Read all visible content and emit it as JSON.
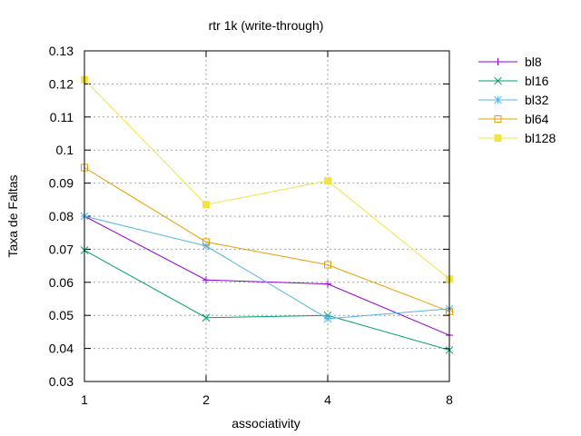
{
  "chart_data": {
    "type": "line",
    "title": "rtr 1k (write-through)",
    "xlabel": "associativity",
    "ylabel": "Taxa de Faltas",
    "x": [
      1,
      2,
      4,
      8
    ],
    "x_tick_labels": [
      "1",
      "2",
      "4",
      "8"
    ],
    "ylim": [
      0.03,
      0.13
    ],
    "y_ticks": [
      0.03,
      0.04,
      0.05,
      0.06,
      0.07,
      0.08,
      0.09,
      0.1,
      0.11,
      0.12,
      0.13
    ],
    "y_tick_labels": [
      "0.03",
      "0.04",
      "0.05",
      "0.06",
      "0.07",
      "0.08",
      "0.09",
      "0.1",
      "0.11",
      "0.12",
      "0.13"
    ],
    "grid": true,
    "legend_position": "outside-right-top",
    "series": [
      {
        "name": "bl8",
        "color": "#9400d3",
        "marker": "plus",
        "values": [
          0.08,
          0.0607,
          0.0595,
          0.044
        ]
      },
      {
        "name": "bl16",
        "color": "#009e73",
        "marker": "cross",
        "values": [
          0.0697,
          0.0493,
          0.05,
          0.0395
        ]
      },
      {
        "name": "bl32",
        "color": "#56b4e9",
        "marker": "star",
        "values": [
          0.08,
          0.071,
          0.049,
          0.052
        ]
      },
      {
        "name": "bl64",
        "color": "#e69f00",
        "marker": "square-open",
        "values": [
          0.0947,
          0.0722,
          0.0653,
          0.0512
        ]
      },
      {
        "name": "bl128",
        "color": "#f0e442",
        "marker": "square-filled",
        "values": [
          0.1213,
          0.0835,
          0.0907,
          0.061
        ]
      }
    ]
  }
}
